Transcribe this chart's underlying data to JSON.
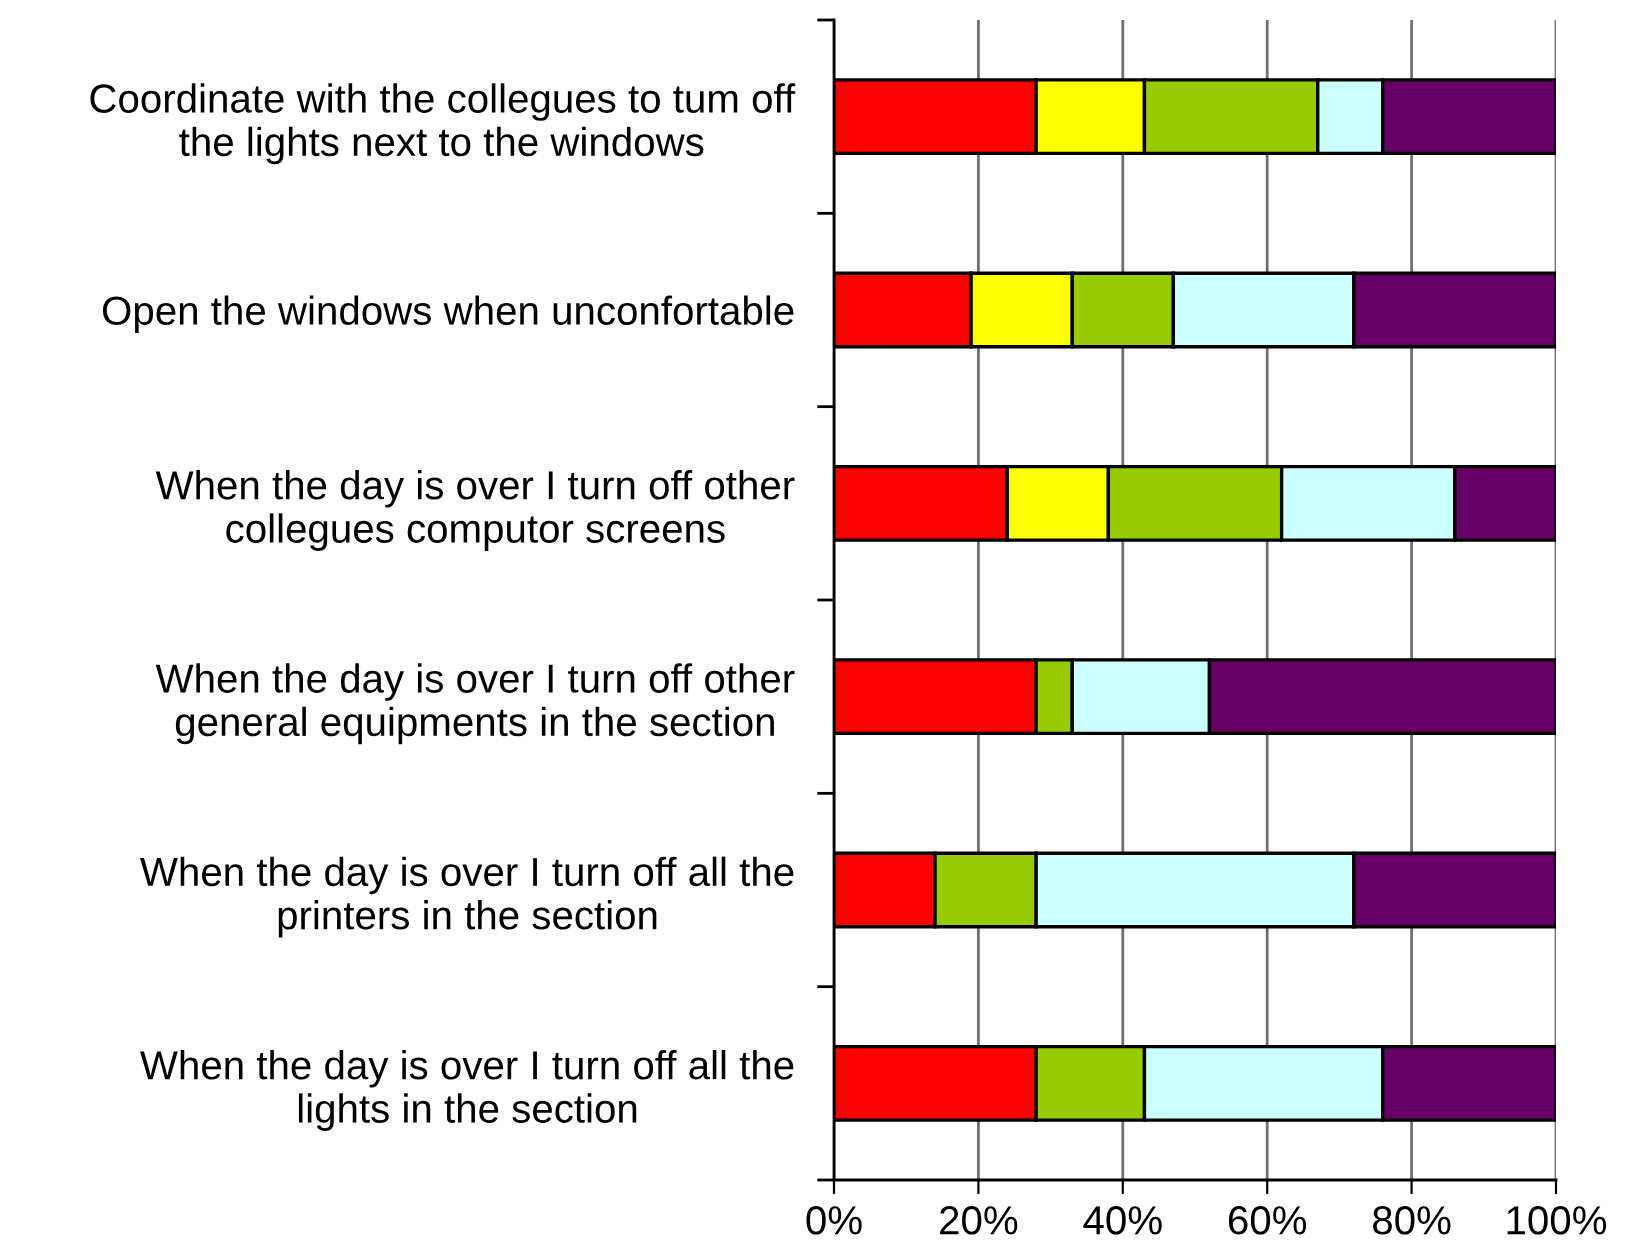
{
  "chart_data": {
    "type": "bar",
    "orientation": "horizontal",
    "stacked": true,
    "categories": [
      "Coordinate with the collegues to tum off the lights next to the windows",
      "Open the windows when unconfortable",
      "When the day is over I turn off other collegues computor screens",
      "When the day is over I turn off other general equipments in the section",
      "When the day is over I turn off all the printers in the section",
      "When the day is over I turn off all the lights in the section"
    ],
    "series": [
      {
        "color": "#ff0000",
        "values": [
          28,
          19,
          24,
          28,
          14,
          28
        ]
      },
      {
        "color": "#ffff00",
        "values": [
          15,
          14,
          14,
          null,
          null,
          null
        ]
      },
      {
        "color": "#99cc00",
        "values": [
          24,
          14,
          24,
          5,
          14,
          15
        ]
      },
      {
        "color": "#ccffff",
        "values": [
          9,
          25,
          24,
          19,
          44,
          33
        ]
      },
      {
        "color": "#660066",
        "values": [
          24,
          28,
          14,
          48,
          28,
          24
        ]
      }
    ],
    "xlim": [
      0,
      100
    ],
    "xticks": [
      {
        "value": 0,
        "label": "0%"
      },
      {
        "value": 20,
        "label": "20%"
      },
      {
        "value": 40,
        "label": "40%"
      },
      {
        "value": 60,
        "label": "60%"
      },
      {
        "value": 80,
        "label": "80%"
      },
      {
        "value": 100,
        "label": "100%"
      }
    ],
    "grid": "x"
  }
}
